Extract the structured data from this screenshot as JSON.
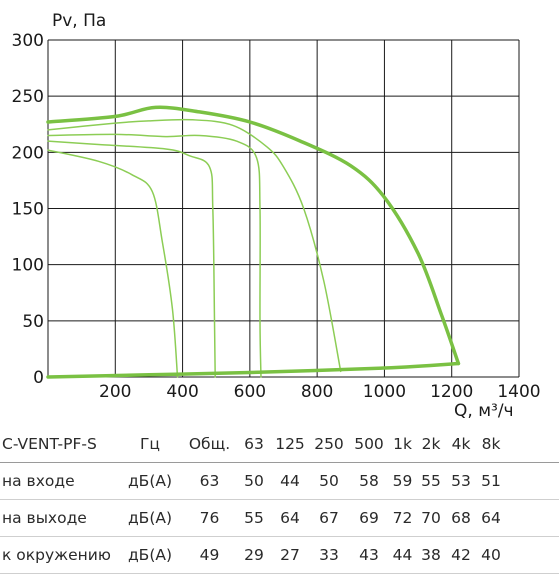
{
  "chart_data": {
    "type": "line",
    "ylabel": "Pv, Па",
    "xlabel": "Q, м³/ч",
    "x_ticks": [
      "200",
      "400",
      "600",
      "800",
      "1000",
      "1200",
      "1400"
    ],
    "y_ticks": [
      "0",
      "50",
      "100",
      "150",
      "200",
      "250",
      "300"
    ],
    "xlim": [
      0,
      1400
    ],
    "ylim": [
      0,
      300
    ],
    "grid": true,
    "colors": {
      "main": "#7ac143",
      "thin": "#8ccd55",
      "grid": "#1a1a1a"
    },
    "series": [
      {
        "values": [
          [
            0,
            227
          ],
          [
            200,
            232
          ],
          [
            320,
            240
          ],
          [
            450,
            236
          ],
          [
            600,
            227
          ],
          [
            750,
            210
          ],
          [
            900,
            188
          ],
          [
            1000,
            160
          ],
          [
            1100,
            110
          ],
          [
            1170,
            55
          ],
          [
            1220,
            12
          ]
        ]
      },
      {
        "values": [
          [
            0,
            220
          ],
          [
            200,
            226
          ],
          [
            300,
            228
          ],
          [
            430,
            229
          ],
          [
            550,
            224
          ],
          [
            650,
            205
          ],
          [
            700,
            187
          ],
          [
            760,
            150
          ],
          [
            820,
            85
          ],
          [
            870,
            5
          ]
        ]
      },
      {
        "values": [
          [
            0,
            215
          ],
          [
            200,
            216
          ],
          [
            350,
            214
          ],
          [
            450,
            215
          ],
          [
            560,
            210
          ],
          [
            620,
            195
          ],
          [
            630,
            150
          ],
          [
            630,
            50
          ],
          [
            633,
            0
          ]
        ]
      },
      {
        "values": [
          [
            0,
            210
          ],
          [
            150,
            207
          ],
          [
            350,
            203
          ],
          [
            420,
            197
          ],
          [
            480,
            187
          ],
          [
            490,
            150
          ],
          [
            495,
            50
          ],
          [
            497,
            0
          ]
        ]
      },
      {
        "values": [
          [
            0,
            202
          ],
          [
            150,
            192
          ],
          [
            250,
            180
          ],
          [
            310,
            165
          ],
          [
            340,
            120
          ],
          [
            370,
            60
          ],
          [
            385,
            0
          ]
        ]
      },
      {
        "values": [
          [
            0,
            0
          ],
          [
            300,
            2
          ],
          [
            600,
            4
          ],
          [
            1000,
            8
          ],
          [
            1220,
            12
          ]
        ]
      }
    ]
  },
  "table": {
    "header": [
      "C-VENT-PF-S",
      "Гц",
      "Общ.",
      "63",
      "125",
      "250",
      "500",
      "1k",
      "2k",
      "4k",
      "8k"
    ],
    "rows": [
      [
        "на входе",
        "дБ(А)",
        "63",
        "50",
        "44",
        "50",
        "58",
        "59",
        "55",
        "53",
        "51"
      ],
      [
        "на выходе",
        "дБ(А)",
        "76",
        "55",
        "64",
        "67",
        "69",
        "72",
        "70",
        "68",
        "64"
      ],
      [
        "к окружению",
        "дБ(А)",
        "49",
        "29",
        "27",
        "33",
        "43",
        "44",
        "38",
        "42",
        "40"
      ]
    ]
  }
}
